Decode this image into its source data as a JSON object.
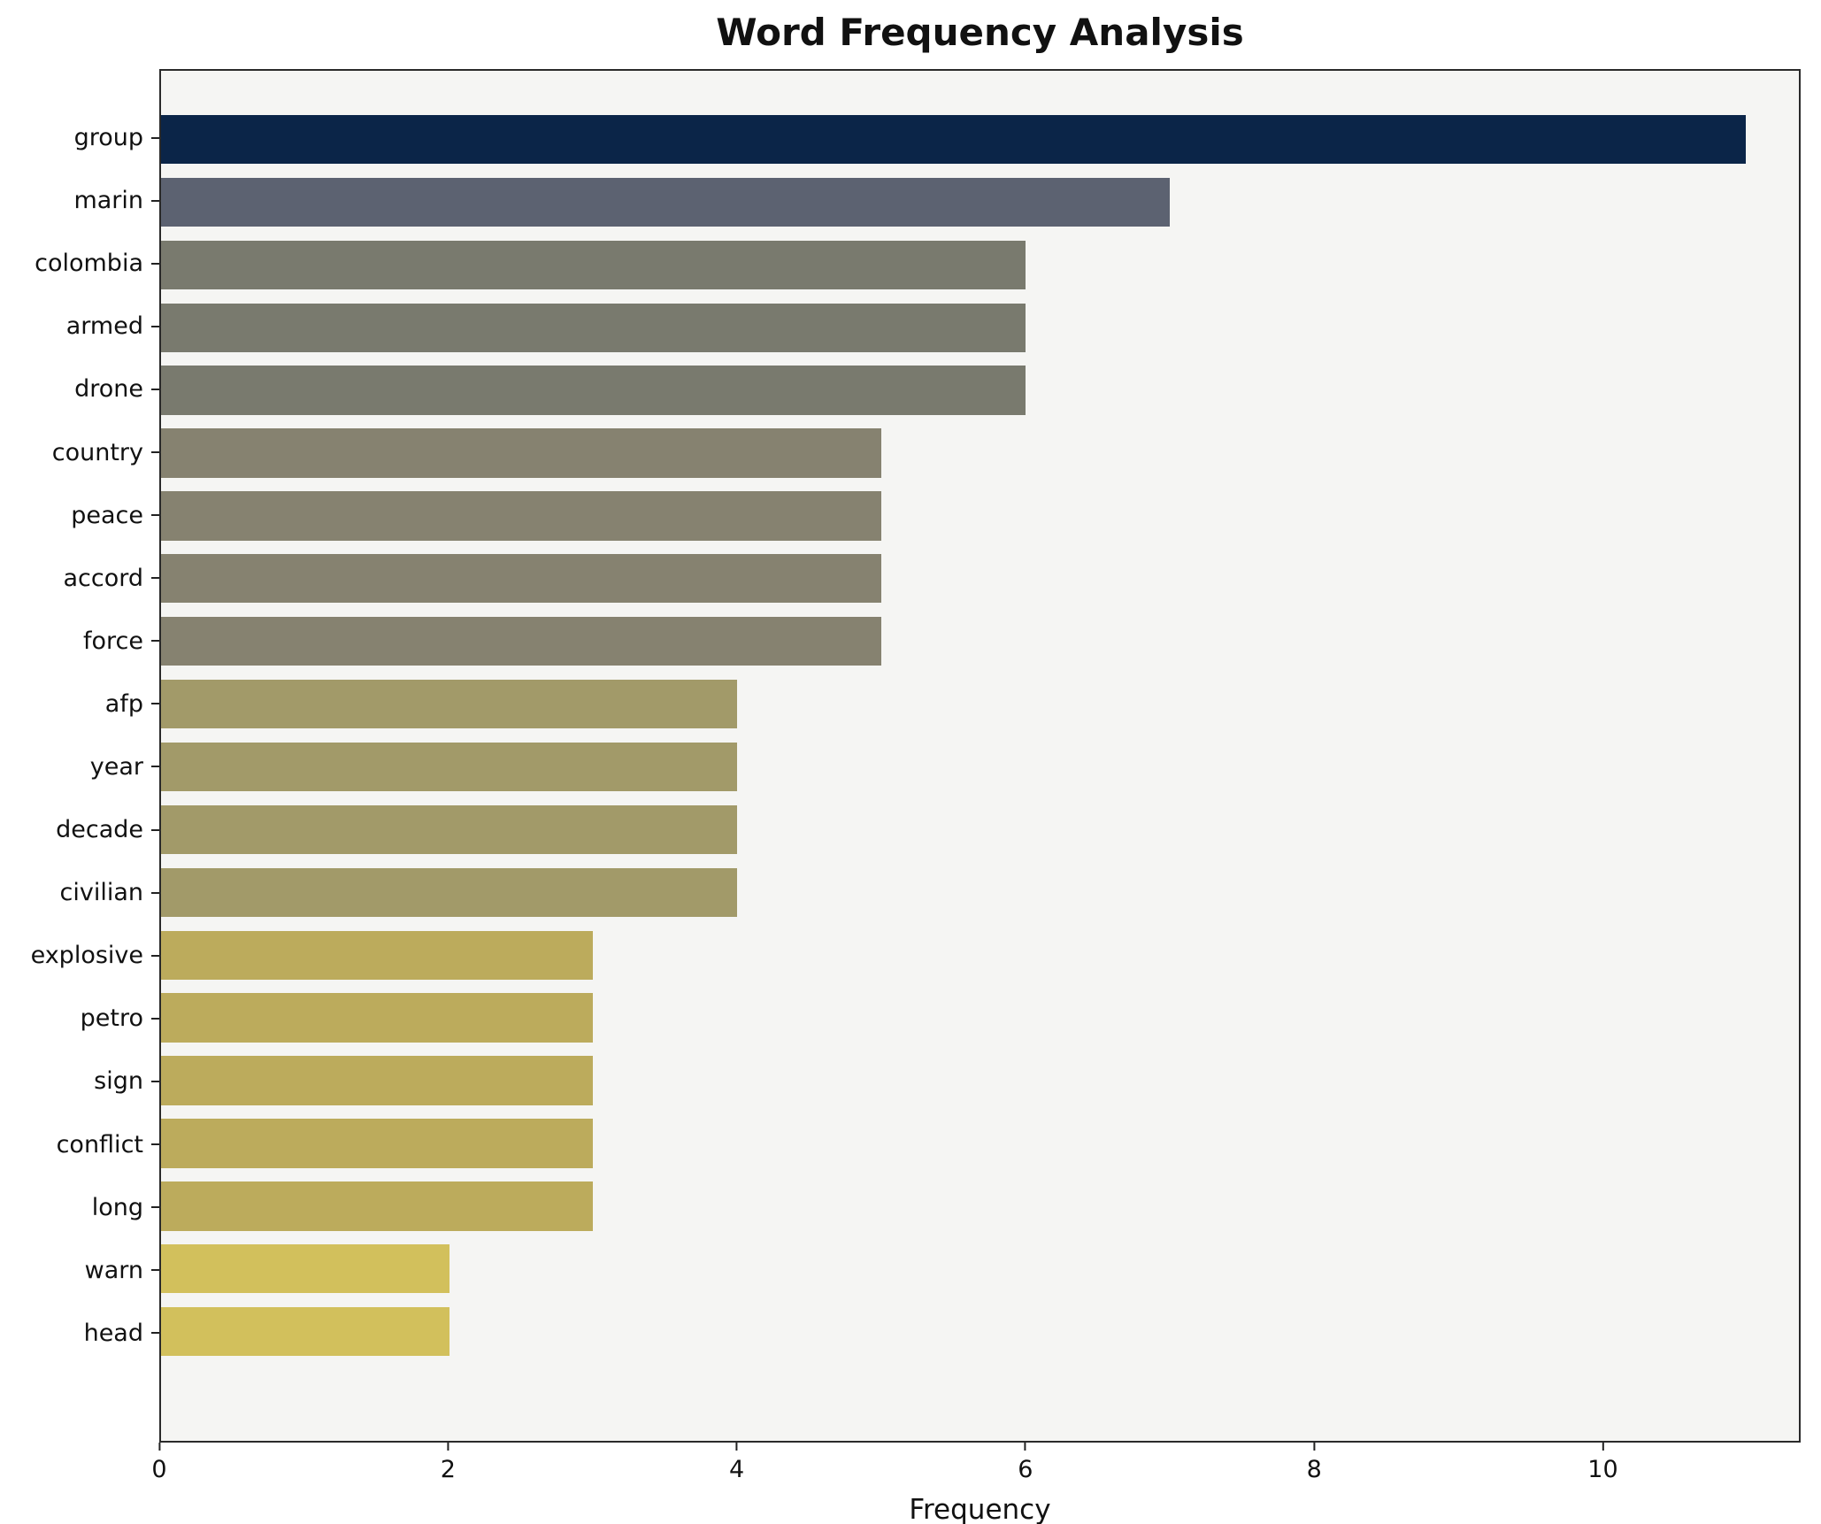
{
  "chart_data": {
    "type": "bar",
    "orientation": "horizontal",
    "title": "Word Frequency Analysis",
    "xlabel": "Frequency",
    "ylabel": "",
    "grid": false,
    "legend": false,
    "plot_background": "#f5f5f3",
    "xlim": [
      0,
      11.37
    ],
    "xticks": [
      0,
      2,
      4,
      6,
      8,
      10
    ],
    "categories": [
      "group",
      "marin",
      "colombia",
      "armed",
      "drone",
      "country",
      "peace",
      "accord",
      "force",
      "afp",
      "year",
      "decade",
      "civilian",
      "explosive",
      "petro",
      "sign",
      "conflict",
      "long",
      "warn",
      "head"
    ],
    "values": [
      11,
      7,
      6,
      6,
      6,
      5,
      5,
      5,
      5,
      4,
      4,
      4,
      4,
      3,
      3,
      3,
      3,
      3,
      2,
      2
    ],
    "bar_colors": [
      "#0b2548",
      "#5c6271",
      "#797a6e",
      "#797a6e",
      "#797a6e",
      "#868270",
      "#868270",
      "#868270",
      "#868270",
      "#a29a69",
      "#a29a69",
      "#a29a69",
      "#a29a69",
      "#bcab5c",
      "#bcab5c",
      "#bcab5c",
      "#bcab5c",
      "#bcab5c",
      "#d2c05c",
      "#d2c05c"
    ]
  }
}
